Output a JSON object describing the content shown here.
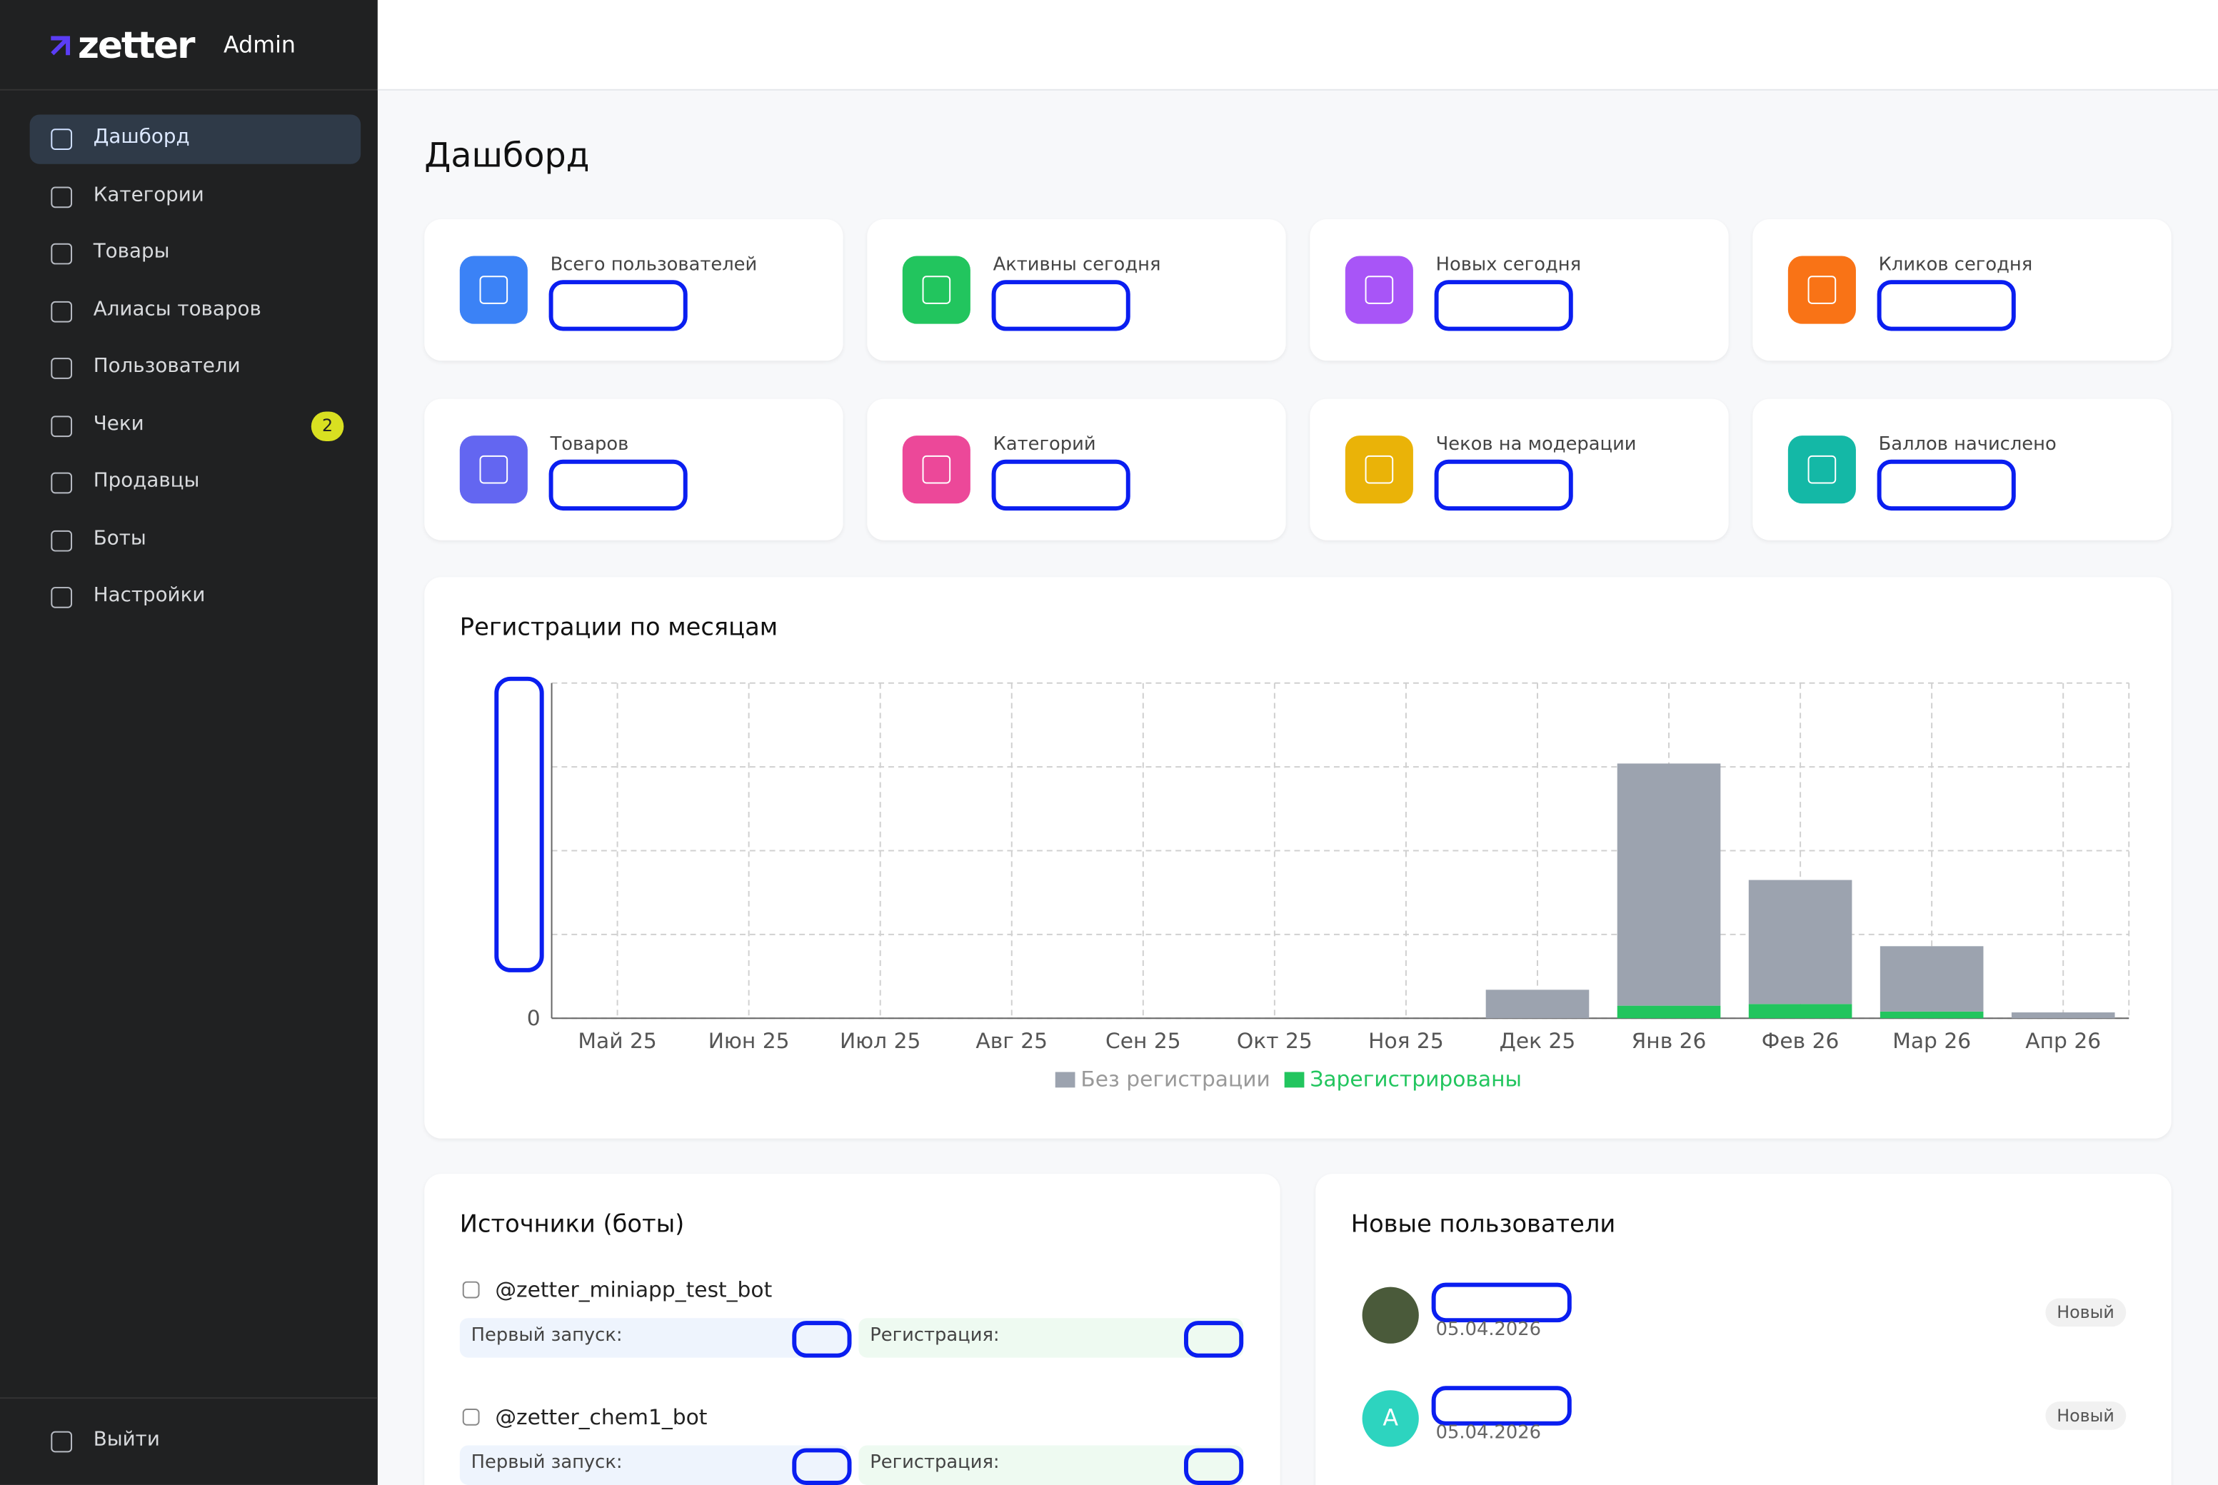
{
  "brand": {
    "logo": "zetter",
    "suffix": "Admin"
  },
  "sidebar": {
    "items": [
      {
        "label": "Дашборд"
      },
      {
        "label": "Категории"
      },
      {
        "label": "Товары"
      },
      {
        "label": "Алиасы товаров"
      },
      {
        "label": "Пользователи"
      },
      {
        "label": "Чеки",
        "badge": "2"
      },
      {
        "label": "Продавцы"
      },
      {
        "label": "Боты"
      },
      {
        "label": "Настройки"
      }
    ],
    "logout": "Выйти"
  },
  "page_title": "Дашборд",
  "stats": [
    {
      "label": "Всего пользователей",
      "color": "#3b82f6"
    },
    {
      "label": "Активны сегодня",
      "color": "#22c55e"
    },
    {
      "label": "Новых сегодня",
      "color": "#a855f7"
    },
    {
      "label": "Кликов сегодня",
      "color": "#f97316"
    },
    {
      "label": "Товаров",
      "color": "#6366f1"
    },
    {
      "label": "Категорий",
      "color": "#ec4899"
    },
    {
      "label": "Чеков на модерации",
      "color": "#eab308"
    },
    {
      "label": "Баллов начислено",
      "color": "#14b8a6"
    }
  ],
  "chart_data": {
    "type": "stacked_bar",
    "title": "Регистрации по месяцам",
    "categories": [
      "Май 25",
      "Июн 25",
      "Июл 25",
      "Авг 25",
      "Сен 25",
      "Окт 25",
      "Ноя 25",
      "Дек 25",
      "Янв 26",
      "Фев 26",
      "Мар 26",
      "Апр 26"
    ],
    "series": [
      {
        "name": "Без регистрации",
        "color": "#9ca3af",
        "values": [
          0,
          0,
          0,
          0,
          0,
          0,
          0,
          0.34,
          2.89,
          1.48,
          0.78,
          0.07
        ]
      },
      {
        "name": "Зарегистрированы",
        "color": "#22c55e",
        "values": [
          0,
          0,
          0,
          0,
          0,
          0,
          0,
          0,
          0.15,
          0.17,
          0.08,
          0
        ]
      }
    ],
    "ylim": [
      0,
      4
    ],
    "yticks": [
      0
    ],
    "ygrid": [
      0,
      1,
      2,
      3,
      4
    ],
    "grid": true,
    "legend": "bottom"
  },
  "sources": {
    "title": "Источники (боты)",
    "bots": [
      {
        "name": "@zetter_miniapp_test_bot",
        "first": "Первый запуск:",
        "reg": "Регистрация:"
      },
      {
        "name": "@zetter_chem1_bot",
        "first": "Первый запуск:",
        "reg": "Регистрация:"
      }
    ]
  },
  "new_users": {
    "title": "Новые пользователи",
    "users": [
      {
        "date": "05.04.2026",
        "badge": "Новый"
      },
      {
        "avatar": "A",
        "date": "05.04.2026",
        "badge": "Новый"
      }
    ]
  }
}
